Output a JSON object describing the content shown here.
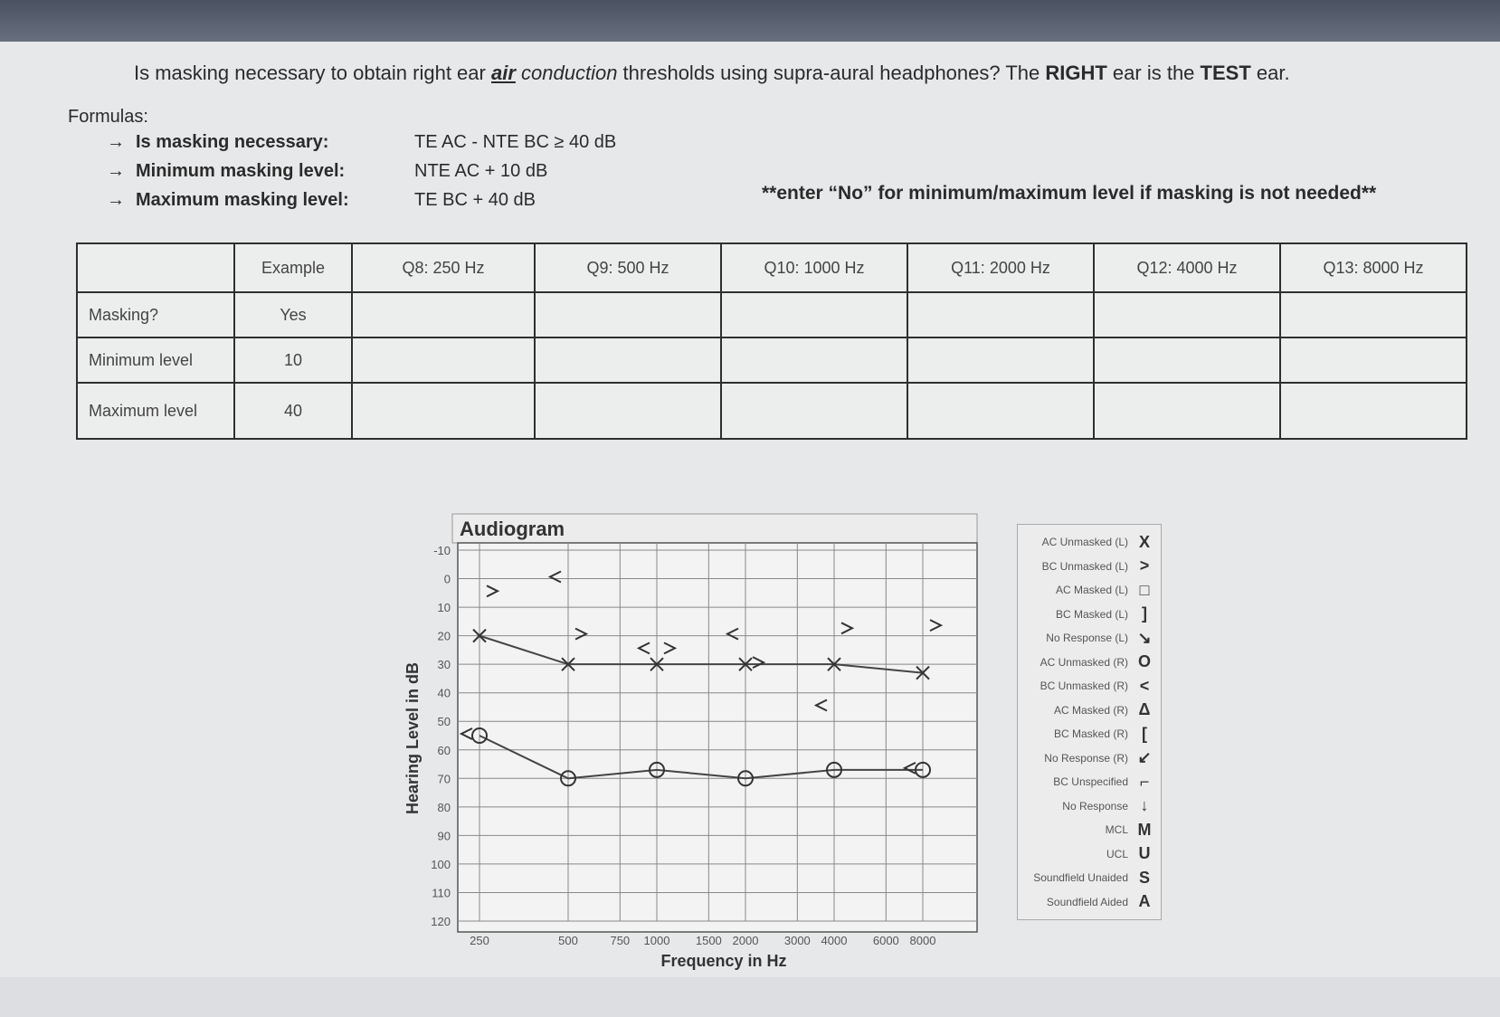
{
  "question": {
    "part1": "Is masking necessary to obtain right ear ",
    "part2": "air",
    "part3": "conduction",
    "part4": " thresholds using supra-aural headphones? The ",
    "part5": "RIGHT",
    "part6": " ear is the ",
    "part7": "TEST",
    "part8": " ear."
  },
  "formulas": {
    "title": "Formulas:",
    "items": [
      {
        "label": "Is masking necessary:",
        "formula": "TE AC - NTE BC ≥ 40 dB"
      },
      {
        "label": "Minimum masking level:",
        "formula": "NTE AC + 10 dB"
      },
      {
        "label": "Maximum masking level:",
        "formula": "TE BC + 40 dB"
      }
    ]
  },
  "note": "**enter “No” for minimum/maximum level if masking is not needed**",
  "table": {
    "headers": [
      "",
      "Example",
      "Q8: 250 Hz",
      "Q9: 500 Hz",
      "Q10: 1000 Hz",
      "Q11: 2000 Hz",
      "Q12: 4000 Hz",
      "Q13: 8000 Hz"
    ],
    "rows": [
      {
        "label": "Masking?",
        "example": "Yes"
      },
      {
        "label": "Minimum level",
        "example": "10"
      },
      {
        "label": "Maximum level",
        "example": "40"
      }
    ]
  },
  "audiogram": {
    "title": "Audiogram",
    "ylabel": "Hearing Level in dB",
    "xlabel": "Frequency in Hz",
    "y_ticks": [
      "-10",
      "0",
      "10",
      "20",
      "30",
      "40",
      "50",
      "60",
      "70",
      "80",
      "90",
      "100",
      "110",
      "120"
    ],
    "x_ticks": [
      "250",
      "500",
      "750",
      "1000",
      "1500",
      "2000",
      "3000",
      "4000",
      "6000",
      "8000"
    ]
  },
  "chart_data": {
    "type": "scatter",
    "title": "Audiogram",
    "xlabel": "Frequency in Hz",
    "ylabel": "Hearing Level in dB",
    "ylim": [
      -10,
      120
    ],
    "y_inverted": true,
    "x_scale": "log",
    "grid": true,
    "series": [
      {
        "symbol": "X",
        "points": [
          {
            "x": 250,
            "y": 20
          },
          {
            "x": 500,
            "y": 30
          },
          {
            "x": 1000,
            "y": 30
          },
          {
            "x": 2000,
            "y": 30
          },
          {
            "x": 4000,
            "y": 30
          },
          {
            "x": 8000,
            "y": 33
          }
        ]
      },
      {
        "symbol": ">",
        "points": [
          {
            "x": 250,
            "y": 5
          },
          {
            "x": 500,
            "y": 20
          },
          {
            "x": 1000,
            "y": 25
          },
          {
            "x": 2000,
            "y": 30
          },
          {
            "x": 4000,
            "y": 18
          },
          {
            "x": 8000,
            "y": 17
          }
        ]
      },
      {
        "symbol": "O",
        "points": [
          {
            "x": 250,
            "y": 55
          },
          {
            "x": 500,
            "y": 70
          },
          {
            "x": 1000,
            "y": 67
          },
          {
            "x": 2000,
            "y": 70
          },
          {
            "x": 4000,
            "y": 67
          },
          {
            "x": 8000,
            "y": 67
          }
        ]
      },
      {
        "symbol": "<",
        "points": [
          {
            "x": 250,
            "y": 55
          },
          {
            "x": 500,
            "y": 0
          },
          {
            "x": 1000,
            "y": 25
          },
          {
            "x": 2000,
            "y": 20
          },
          {
            "x": 4000,
            "y": 45
          },
          {
            "x": 8000,
            "y": 67
          }
        ]
      }
    ]
  },
  "legend": [
    {
      "text": "AC Unmasked (L)",
      "sym": "X"
    },
    {
      "text": "BC Unmasked (L)",
      "sym": ">"
    },
    {
      "text": "AC Masked (L)",
      "sym": "□"
    },
    {
      "text": "BC Masked (L)",
      "sym": "]"
    },
    {
      "text": "No Response (L)",
      "sym": "↘"
    },
    {
      "text": "AC Unmasked (R)",
      "sym": "O"
    },
    {
      "text": "BC Unmasked (R)",
      "sym": "<"
    },
    {
      "text": "AC Masked (R)",
      "sym": "Δ"
    },
    {
      "text": "BC Masked (R)",
      "sym": "["
    },
    {
      "text": "No Response (R)",
      "sym": "↙"
    },
    {
      "text": "BC Unspecified",
      "sym": "⌐"
    },
    {
      "text": "No Response",
      "sym": "↓"
    },
    {
      "text": "MCL",
      "sym": "M"
    },
    {
      "text": "UCL",
      "sym": "U"
    },
    {
      "text": "Soundfield Unaided",
      "sym": "S"
    },
    {
      "text": "Soundfield Aided",
      "sym": "A"
    }
  ]
}
